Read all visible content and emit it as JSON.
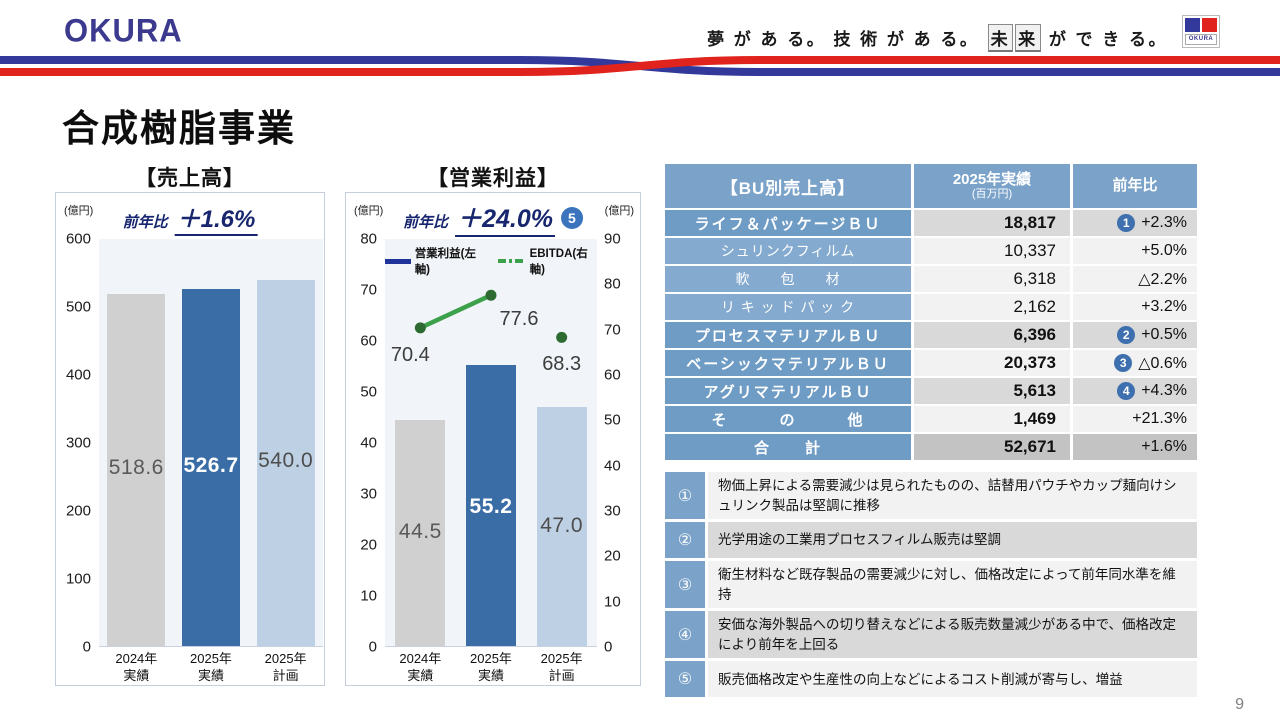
{
  "header": {
    "logo": "OKURA",
    "tagline_pre": "夢 が あ る。 技 術 が あ る。",
    "tagline_boxed": [
      "未",
      "来"
    ],
    "tagline_post": "が で き る。",
    "minilogo_label": "OKURA",
    "ribbon_blue": "#33399a",
    "ribbon_red": "#e1231d"
  },
  "page": {
    "title": "合成樹脂事業",
    "number": "9"
  },
  "chart_data": [
    {
      "type": "bar",
      "title": "【売上高】",
      "unit": "(億円)",
      "yoy": {
        "label": "前年比",
        "value": "＋1.6%"
      },
      "categories": [
        [
          "2024年",
          "実績"
        ],
        [
          "2025年",
          "実績"
        ],
        [
          "2025年",
          "計画"
        ]
      ],
      "values": [
        518.6,
        526.7,
        540.0
      ],
      "value_labels": [
        "518.6",
        "526.7",
        "540.0"
      ],
      "ylim": [
        0,
        600
      ],
      "yticks": [
        "600",
        "500",
        "400",
        "300",
        "200",
        "100",
        "0"
      ],
      "bar_colors": [
        "#d0d0d0",
        "#3a6da6",
        "#bed0e4"
      ],
      "label_colors": [
        "#595959",
        "#ffffff",
        "#4d4d4d"
      ],
      "grid": false,
      "legend_position": "none"
    },
    {
      "type": "bar+line",
      "title": "【営業利益】",
      "unit_left": "(億円)",
      "unit_right": "(億円)",
      "yoy": {
        "label": "前年比",
        "value": "＋24.0%",
        "badge": "5"
      },
      "legend": [
        {
          "name": "営業利益(左軸)",
          "style": "line-solid",
          "color": "#20339b"
        },
        {
          "name": "EBITDA(右軸)",
          "style": "line-dashdot",
          "color": "#3da14b"
        }
      ],
      "categories": [
        [
          "2024年",
          "実績"
        ],
        [
          "2025年",
          "実績"
        ],
        [
          "2025年",
          "計画"
        ]
      ],
      "series": [
        {
          "name": "営業利益(左軸)",
          "type": "bar",
          "axis": "left",
          "values": [
            44.5,
            55.2,
            47.0
          ],
          "labels": [
            "44.5",
            "55.2",
            "47.0"
          ]
        },
        {
          "name": "EBITDA(右軸)",
          "type": "line",
          "axis": "right",
          "values": [
            70.4,
            77.6,
            68.3
          ],
          "labels": [
            "70.4",
            "77.6",
            "68.3"
          ],
          "connected_segment": [
            0,
            1
          ],
          "line_color": "#3da14b",
          "marker_color": "#2d6b32"
        }
      ],
      "left_ylim": [
        0,
        80
      ],
      "right_ylim": [
        0,
        90
      ],
      "left_yticks": [
        "80",
        "70",
        "60",
        "50",
        "40",
        "30",
        "20",
        "10",
        "0"
      ],
      "right_yticks": [
        "90",
        "80",
        "70",
        "60",
        "50",
        "40",
        "30",
        "20",
        "10",
        "0"
      ],
      "bar_colors": [
        "#d0d0d0",
        "#3a6da6",
        "#bed0e4"
      ],
      "label_colors": [
        "#595959",
        "#ffffff",
        "#4d4d4d"
      ],
      "grid": false,
      "legend_position": "top"
    }
  ],
  "table": {
    "header": {
      "col1": "【BU別売上高】",
      "col2_main": "2025年実績",
      "col2_unit": "(百万円)",
      "col3": "前年比"
    },
    "rows": [
      {
        "name": "ライフ＆パッケージＢＵ",
        "value": "18,817",
        "pct": "+2.3%",
        "badge": "1",
        "kind": "bu",
        "shade": "g"
      },
      {
        "name": "シュリンクフィルム",
        "value": "10,337",
        "pct": "+5.0%",
        "badge": null,
        "kind": "sub",
        "shade": "l"
      },
      {
        "name": "軟　　包　　材",
        "value": "6,318",
        "pct": "△2.2%",
        "badge": null,
        "kind": "sub",
        "shade": "l"
      },
      {
        "name": "リ キ ッ ド パ ッ ク",
        "value": "2,162",
        "pct": "+3.2%",
        "badge": null,
        "kind": "sub",
        "shade": "l"
      },
      {
        "name": "プロセスマテリアルＢＵ",
        "value": "6,396",
        "pct": "+0.5%",
        "badge": "2",
        "kind": "bu",
        "shade": "g"
      },
      {
        "name": "ベーシックマテリアルＢＵ",
        "value": "20,373",
        "pct": "△0.6%",
        "badge": "3",
        "kind": "bu",
        "shade": "l"
      },
      {
        "name": "アグリマテリアルＢＵ",
        "value": "5,613",
        "pct": "+4.3%",
        "badge": "4",
        "kind": "bu",
        "shade": "g"
      },
      {
        "name": "そ　　　の　　　他",
        "value": "1,469",
        "pct": "+21.3%",
        "badge": null,
        "kind": "bu",
        "shade": "l"
      },
      {
        "name": "合　　計",
        "value": "52,671",
        "pct": "+1.6%",
        "badge": null,
        "kind": "total",
        "shade": "d"
      }
    ]
  },
  "notes": [
    {
      "num": "①",
      "text": "物価上昇による需要減少は見られたものの、詰替用パウチやカップ麺向けシュリンク製品は堅調に推移"
    },
    {
      "num": "②",
      "text": "光学用途の工業用プロセスフィルム販売は堅調"
    },
    {
      "num": "③",
      "text": "衛生材料など既存製品の需要減少に対し、価格改定によって前年同水準を維持"
    },
    {
      "num": "④",
      "text": "安価な海外製品への切り替えなどによる販売数量減少がある中で、価格改定により前年を上回る"
    },
    {
      "num": "⑤",
      "text": "販売価格改定や生産性の向上などによるコスト削減が寄与し、増益"
    }
  ]
}
